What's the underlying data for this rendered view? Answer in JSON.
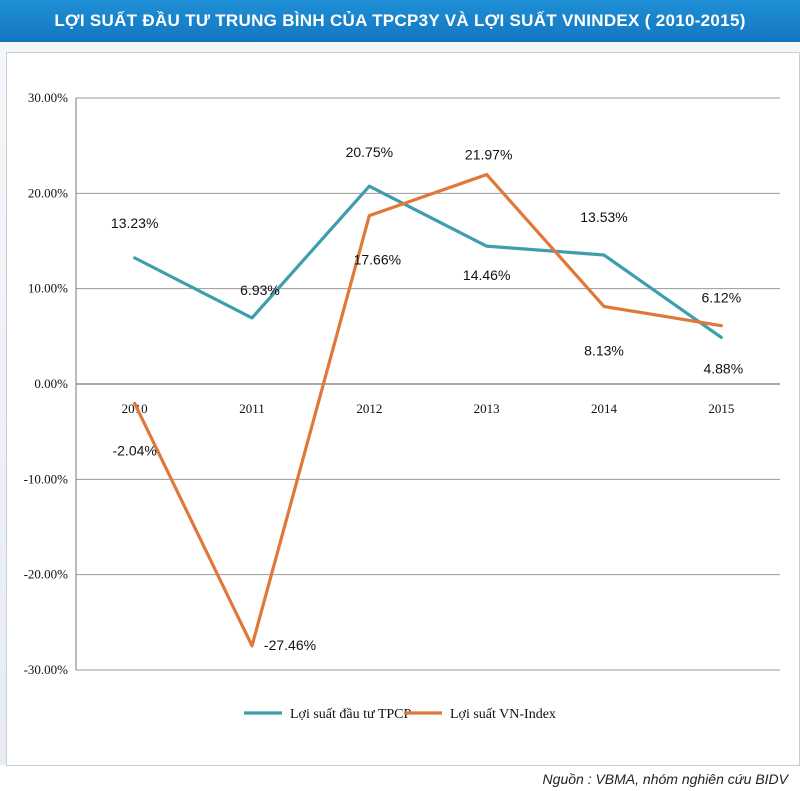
{
  "header": {
    "title": "LỢI SUẤT ĐẦU TƯ TRUNG BÌNH CỦA TPCP3Y VÀ LỢI SUẤT VNINDEX ( 2010-2015)"
  },
  "footer": {
    "source": "Nguồn : VBMA, nhóm nghiên cứu BIDV"
  },
  "chart_data": {
    "type": "line",
    "title": "LỢI SUẤT ĐẦU TƯ TRUNG BÌNH CỦA TPCP3Y VÀ LỢI SUẤT VNINDEX ( 2010-2015)",
    "xlabel": "",
    "ylabel": "",
    "categories": [
      "2010",
      "2011",
      "2012",
      "2013",
      "2014",
      "2015"
    ],
    "ylim": [
      -30,
      30
    ],
    "yticks": [
      30,
      20,
      10,
      0,
      -10,
      -20,
      -30
    ],
    "ytick_labels": [
      "30.00%",
      "20.00%",
      "10.00%",
      "0.00%",
      "-10.00%",
      "-20.00%",
      "-30.00%"
    ],
    "grid": true,
    "legend_position": "bottom",
    "series": [
      {
        "name": "Lợi suất đầu tư TPCP",
        "color": "#3f9ead",
        "values": [
          13.23,
          6.93,
          20.75,
          14.46,
          13.53,
          4.88
        ],
        "labels": [
          "13.23%",
          "6.93%",
          "20.75%",
          "14.46%",
          "13.53%",
          "4.88%"
        ]
      },
      {
        "name": "Lợi suất VN-Index",
        "color": "#e0783a",
        "values": [
          -2.04,
          -27.46,
          17.66,
          21.97,
          8.13,
          6.12
        ],
        "labels": [
          "-2.04%",
          "-27.46%",
          "17.66%",
          "21.97%",
          "8.13%",
          "6.12%"
        ]
      }
    ]
  }
}
